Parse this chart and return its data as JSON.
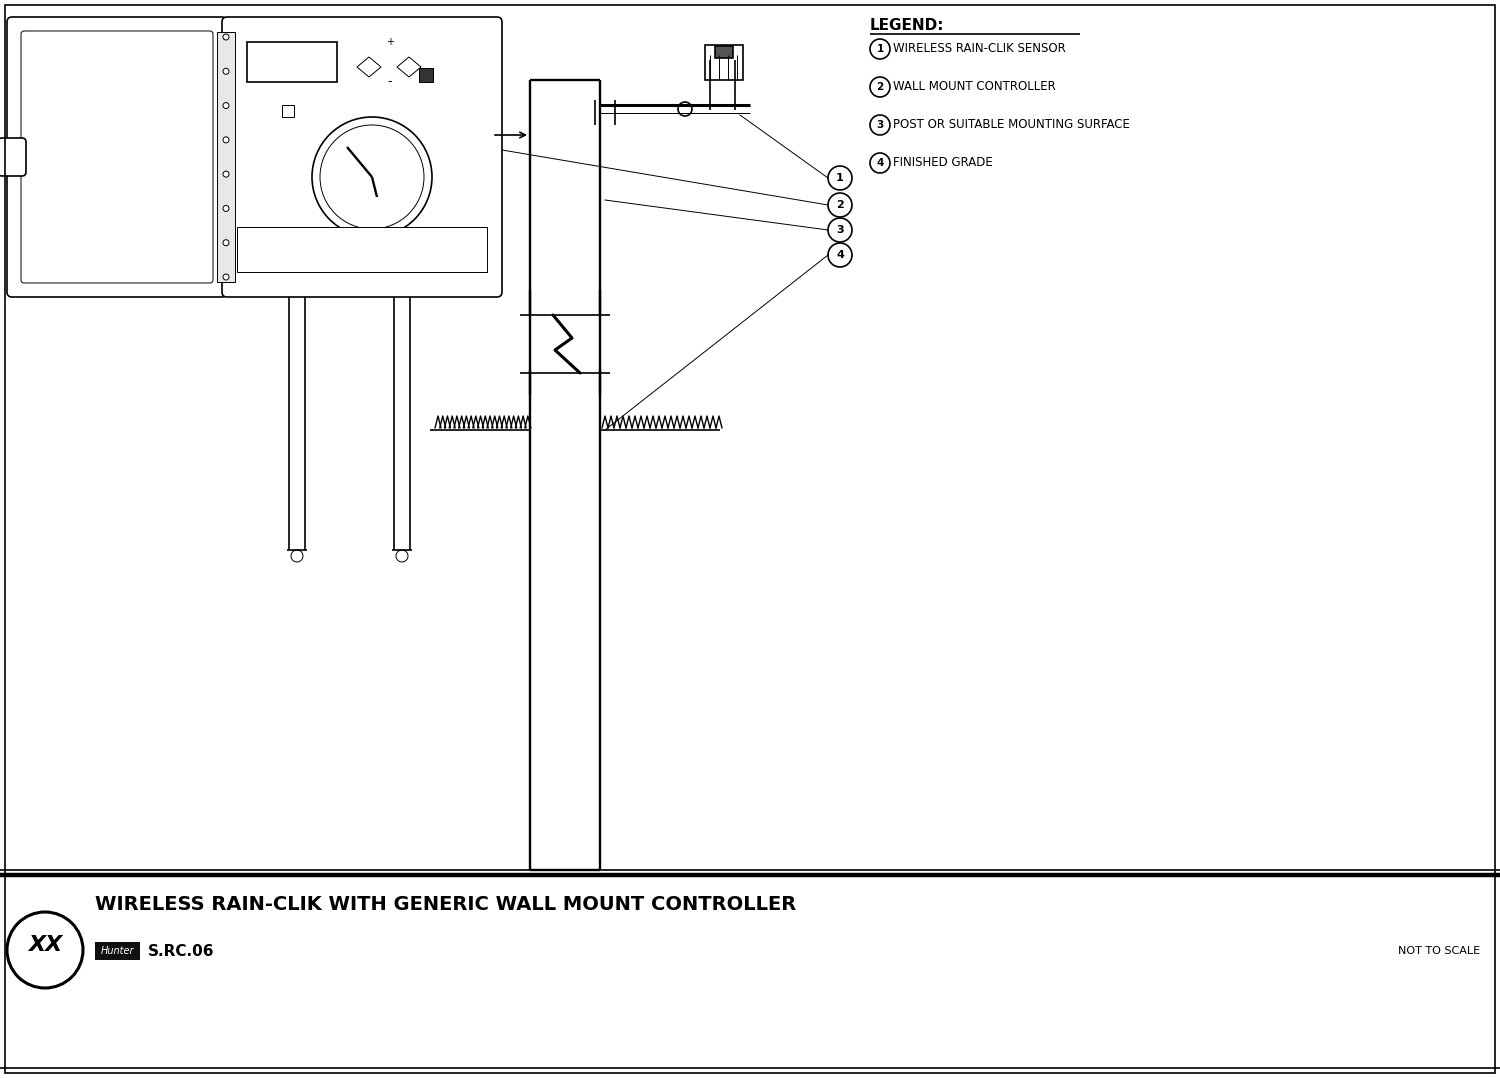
{
  "title": "WIRELESS RAIN-CLIK WITH GENERIC WALL MOUNT CONTROLLER",
  "subtitle": "S.RC.06",
  "not_to_scale": "NOT TO SCALE",
  "legend_title": "LEGEND:",
  "legend_items": [
    {
      "num": "1",
      "text": "WIRELESS RAIN-CLIK SENSOR"
    },
    {
      "num": "2",
      "text": "WALL MOUNT CONTROLLER"
    },
    {
      "num": "3",
      "text": "POST OR SUITABLE MOUNTING SURFACE"
    },
    {
      "num": "4",
      "text": "FINISHED GRADE"
    }
  ],
  "bg_color": "#ffffff",
  "line_color": "#000000",
  "linewidth": 1.2,
  "thin_lw": 0.7
}
